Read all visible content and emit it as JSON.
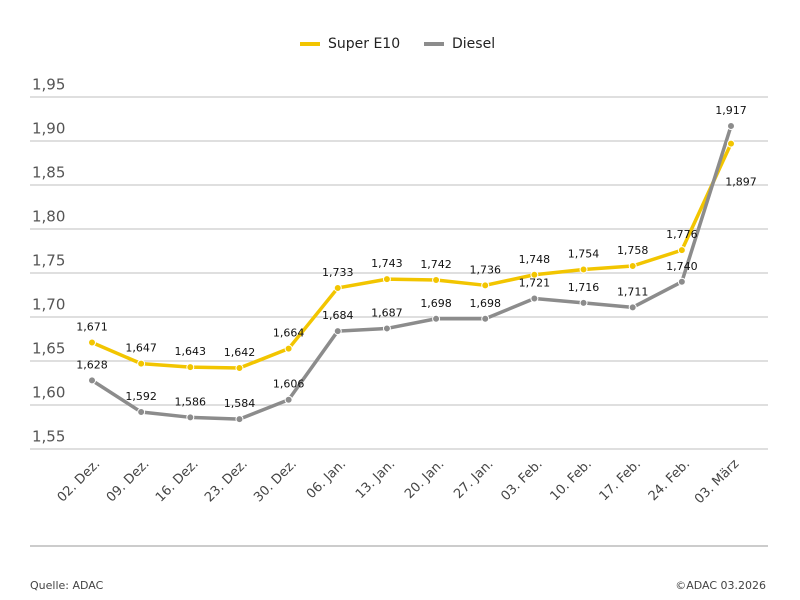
{
  "chart_data": {
    "type": "line",
    "categories": [
      "02. Dez.",
      "09. Dez.",
      "16. Dez.",
      "23. Dez.",
      "30. Dez.",
      "06. Jan.",
      "13. Jan.",
      "20. Jan.",
      "27. Jan.",
      "03. Feb.",
      "10. Feb.",
      "17. Feb.",
      "24. Feb.",
      "03. März"
    ],
    "series": [
      {
        "name": "Super E10",
        "color": "#f2c500",
        "values": [
          1.671,
          1.647,
          1.643,
          1.642,
          1.664,
          1.733,
          1.743,
          1.742,
          1.736,
          1.748,
          1.754,
          1.758,
          1.776,
          1.897
        ],
        "value_labels": [
          "1,671",
          "1,647",
          "1,643",
          "1,642",
          "1,664",
          "1,733",
          "1,743",
          "1,742",
          "1,736",
          "1,748",
          "1,754",
          "1,758",
          "1,776",
          "1,897"
        ]
      },
      {
        "name": "Diesel",
        "color": "#8c8c8c",
        "values": [
          1.628,
          1.592,
          1.586,
          1.584,
          1.606,
          1.684,
          1.687,
          1.698,
          1.698,
          1.721,
          1.716,
          1.711,
          1.74,
          1.917
        ],
        "value_labels": [
          "1,628",
          "1,592",
          "1,586",
          "1,584",
          "1,606",
          "1,684",
          "1,687",
          "1,698",
          "1,698",
          "1,721",
          "1,716",
          "1,711",
          "1,740",
          "1,917"
        ]
      }
    ],
    "ylim": [
      1.55,
      1.95
    ],
    "yticks": [
      {
        "value": 1.55,
        "label": "1,55"
      },
      {
        "value": 1.6,
        "label": "1,60"
      },
      {
        "value": 1.65,
        "label": "1,65"
      },
      {
        "value": 1.7,
        "label": "1,70"
      },
      {
        "value": 1.75,
        "label": "1,75"
      },
      {
        "value": 1.8,
        "label": "1,80"
      },
      {
        "value": 1.85,
        "label": "1,85"
      },
      {
        "value": 1.9,
        "label": "1,90"
      },
      {
        "value": 1.95,
        "label": "1,95"
      }
    ],
    "grid": true,
    "legend": "top",
    "source": "Quelle: ADAC",
    "copyright": "©ADAC 03.2026"
  }
}
